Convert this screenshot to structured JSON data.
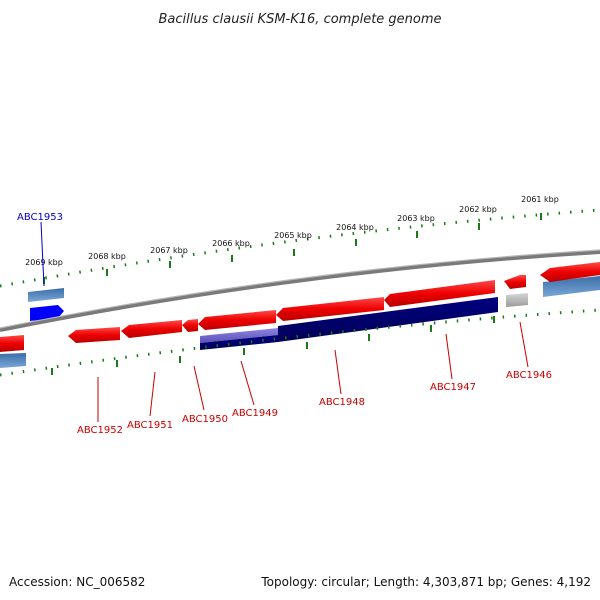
{
  "title": "Bacillus clausii KSM-K16, complete genome",
  "accession": "Accession: NC_006582",
  "summary": "Topology: circular; Length: 4,303,871 bp; Genes: 4,192",
  "colors": {
    "backbone": "#7a7a7a",
    "forward_gene": "#ee0000",
    "reverse_gene": "#4a7fb5",
    "cds": "#000080",
    "cds_light": "#7b6fd0",
    "highlight": "#0000ff",
    "pseudo": "#bbbbbb",
    "tick": "#1a7a1a",
    "label_red": "#cc0000",
    "label_blue": "#0000cc"
  },
  "scale_labels": [
    "2069 kbp",
    "2068 kbp",
    "2067 kbp",
    "2066 kbp",
    "2065 kbp",
    "2064 kbp",
    "2063 kbp",
    "2062 kbp",
    "2061 kbp"
  ],
  "gene_labels": [
    {
      "name": "ABC1953",
      "color": "blue"
    },
    {
      "name": "ABC1952",
      "color": "red"
    },
    {
      "name": "ABC1951",
      "color": "red"
    },
    {
      "name": "ABC1950",
      "color": "red"
    },
    {
      "name": "ABC1949",
      "color": "red"
    },
    {
      "name": "ABC1948",
      "color": "red"
    },
    {
      "name": "ABC1947",
      "color": "red"
    },
    {
      "name": "ABC1946",
      "color": "red"
    }
  ]
}
